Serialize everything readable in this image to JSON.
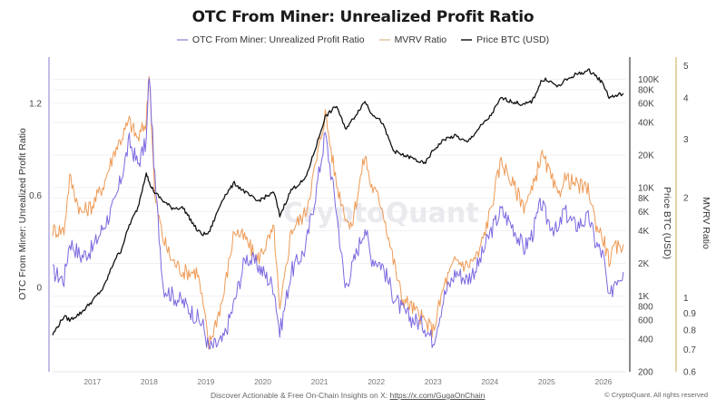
{
  "title": "OTC From Miner: Unrealized Profit Ratio",
  "legend": [
    {
      "label": "OTC From Miner: Unrealized Profit Ratio",
      "color": "#7b68e0"
    },
    {
      "label": "MVRV Ratio",
      "color": "#ee9a55"
    },
    {
      "label": "Price BTC (USD)",
      "color": "#111111"
    }
  ],
  "watermark": "CryptoQuant",
  "footer": {
    "text": "Discover Actionable & Free On-Chain Insights on X: ",
    "link": "https://x.com/GugaOnChain",
    "copyright": "© CryptoQuant. All rights reserved"
  },
  "chart_data": {
    "type": "line",
    "title": "OTC From Miner: Unrealized Profit Ratio",
    "xlabel": "",
    "x_ticks": [
      "2017",
      "2018",
      "2019",
      "2020",
      "2021",
      "2022",
      "2023",
      "2024",
      "2025",
      "2026"
    ],
    "xlim": [
      2016.3,
      2026.4
    ],
    "axes": {
      "left": {
        "label": "OTC From Miner: Unrealized Profit Ratio",
        "ticks": [
          "1.2",
          "0.6",
          "0"
        ],
        "scale": "linear",
        "range": [
          -0.55,
          1.5
        ]
      },
      "right_price": {
        "label": "Price BTC (USD)",
        "ticks": [
          "100K",
          "80K",
          "60K",
          "40K",
          "20K",
          "10K",
          "8K",
          "6K",
          "4K",
          "2K",
          "1K",
          "800",
          "600",
          "400",
          "200"
        ],
        "scale": "log",
        "range": [
          200,
          160000
        ]
      },
      "right_mvrv": {
        "label": "MVRV Ratio",
        "ticks": [
          "5",
          "4",
          "3",
          "2",
          "1",
          "0.9",
          "0.8",
          "0.7",
          "0.6"
        ],
        "scale": "log",
        "range": [
          0.6,
          5.3
        ]
      }
    },
    "grid": true,
    "legend_position": "top-center",
    "x": [
      2016.3,
      2016.5,
      2016.6,
      2016.8,
      2017.0,
      2017.2,
      2017.4,
      2017.5,
      2017.65,
      2017.8,
      2017.95,
      2018.0,
      2018.1,
      2018.25,
      2018.4,
      2018.6,
      2018.85,
      2018.95,
      2019.05,
      2019.3,
      2019.5,
      2019.7,
      2019.9,
      2020.2,
      2020.3,
      2020.5,
      2020.75,
      2020.95,
      2021.1,
      2021.3,
      2021.45,
      2021.55,
      2021.8,
      2021.9,
      2022.1,
      2022.3,
      2022.45,
      2022.6,
      2022.85,
      2023.0,
      2023.2,
      2023.4,
      2023.6,
      2023.8,
      2024.0,
      2024.2,
      2024.4,
      2024.6,
      2024.75,
      2024.9,
      2025.0,
      2025.2,
      2025.3,
      2025.5,
      2025.75,
      2025.85,
      2026.0,
      2026.1,
      2026.2,
      2026.35
    ],
    "series": [
      {
        "name": "OTC From Miner: Unrealized Profit Ratio",
        "axis": "left",
        "color": "#7b68e0",
        "values": [
          0.1,
          0.05,
          0.3,
          0.2,
          0.25,
          0.4,
          0.55,
          0.7,
          0.95,
          0.8,
          0.95,
          1.4,
          0.7,
          0.0,
          -0.05,
          -0.1,
          -0.2,
          -0.25,
          -0.4,
          -0.35,
          -0.1,
          0.2,
          0.15,
          0.0,
          -0.3,
          0.1,
          0.25,
          0.65,
          1.0,
          0.5,
          0.0,
          0.1,
          0.4,
          0.2,
          0.15,
          -0.05,
          -0.15,
          -0.2,
          -0.25,
          -0.35,
          -0.05,
          0.1,
          0.05,
          0.15,
          0.35,
          0.5,
          0.4,
          0.25,
          0.35,
          0.55,
          0.45,
          0.35,
          0.5,
          0.4,
          0.45,
          0.3,
          0.2,
          -0.1,
          0.05,
          0.1
        ]
      },
      {
        "name": "MVRV Ratio",
        "axis": "right_mvrv",
        "color": "#ee9a55",
        "values": [
          1.6,
          1.6,
          2.3,
          1.8,
          1.9,
          2.2,
          2.8,
          3.0,
          3.4,
          3.0,
          3.4,
          4.9,
          2.0,
          1.5,
          1.3,
          1.2,
          1.2,
          0.95,
          0.72,
          1.0,
          1.6,
          1.5,
          1.3,
          1.6,
          0.9,
          1.6,
          1.8,
          2.6,
          3.6,
          2.2,
          1.8,
          1.6,
          2.7,
          2.2,
          1.9,
          1.3,
          1.0,
          0.95,
          0.85,
          0.8,
          1.1,
          1.3,
          1.25,
          1.35,
          1.8,
          2.6,
          2.2,
          1.9,
          2.1,
          2.7,
          2.5,
          2.0,
          2.3,
          2.2,
          2.1,
          1.7,
          1.5,
          1.3,
          1.4,
          1.45
        ]
      },
      {
        "name": "Price BTC (USD)",
        "axis": "right_price",
        "color": "#111111",
        "values": [
          440,
          650,
          600,
          700,
          900,
          1200,
          2200,
          2600,
          4500,
          6500,
          14000,
          11000,
          9000,
          7500,
          6500,
          6500,
          4000,
          3700,
          3800,
          8000,
          11000,
          9000,
          7500,
          9000,
          5500,
          9500,
          12000,
          25000,
          45000,
          57000,
          35000,
          40000,
          63000,
          50000,
          40000,
          22000,
          20000,
          19000,
          16500,
          22000,
          28000,
          30000,
          26000,
          35000,
          45000,
          67000,
          62000,
          58000,
          63000,
          95000,
          100000,
          85000,
          95000,
          110000,
          120000,
          110000,
          90000,
          68000,
          70000,
          74000
        ]
      }
    ]
  }
}
